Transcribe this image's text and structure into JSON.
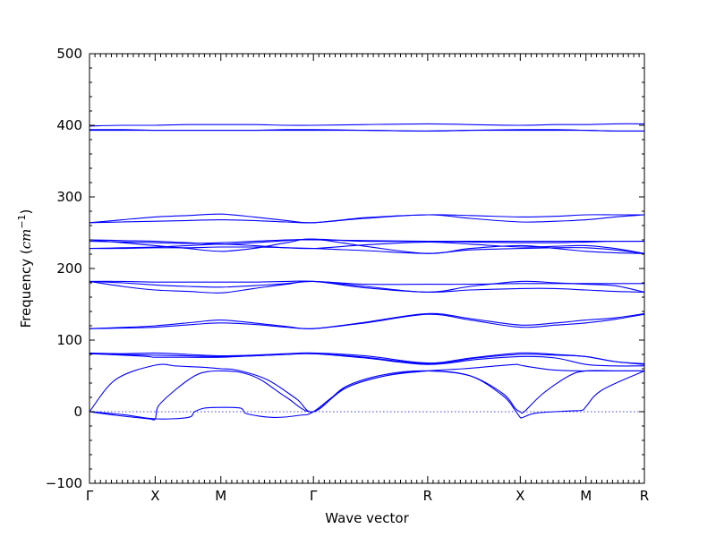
{
  "chart_data": {
    "type": "line",
    "title": "",
    "xlabel": "Wave vector",
    "ylabel": {
      "text": "Frequency (",
      "unit": "cm",
      "exponent": "−1",
      "close": ")"
    },
    "ylim": [
      -100,
      500
    ],
    "yticks": [
      -100,
      0,
      100,
      200,
      300,
      400,
      500
    ],
    "ytick_labels": [
      "−100",
      "0",
      "100",
      "200",
      "300",
      "400",
      "500"
    ],
    "xlim": [
      0,
      8.45
    ],
    "high_symmetry_points": [
      {
        "label": "Γ",
        "x": 0
      },
      {
        "label": "X",
        "x": 1
      },
      {
        "label": "M",
        "x": 2
      },
      {
        "label": "Γ",
        "x": 3.41
      },
      {
        "label": "R",
        "x": 5.15
      },
      {
        "label": "X",
        "x": 6.56
      },
      {
        "label": "M",
        "x": 7.56
      },
      {
        "label": "R",
        "x": 8.45
      }
    ],
    "zero_line": {
      "y": 0,
      "style": "dotted"
    },
    "grid": false,
    "color": "#0000ff",
    "series": [
      {
        "x": [
          0,
          0.4,
          1.0,
          1.3,
          1.5,
          1.75,
          2.0,
          2.25,
          2.7,
          3.15,
          3.41,
          3.9,
          4.5,
          5.15,
          5.7,
          6.2,
          6.5,
          6.56,
          6.75,
          7.1,
          7.56,
          8.0,
          8.45
        ],
        "y": [
          0,
          45,
          65,
          64,
          63,
          62,
          60,
          58,
          45,
          18,
          0,
          33,
          50,
          57,
          60,
          64,
          66,
          65,
          62,
          58,
          57,
          57,
          57
        ]
      },
      {
        "x": [
          0,
          0.4,
          0.9,
          1.0,
          1.05,
          1.3,
          1.6,
          1.8,
          2.0,
          2.3,
          2.6,
          3.0,
          3.41,
          3.9,
          4.5,
          5.15,
          5.8,
          6.3,
          6.48,
          6.56,
          6.62,
          6.9,
          7.3,
          7.56,
          8.0,
          8.45
        ],
        "y": [
          0,
          -5,
          -10,
          -10,
          8,
          30,
          50,
          56,
          57,
          55,
          45,
          20,
          0,
          35,
          52,
          57,
          50,
          25,
          5,
          0,
          0,
          25,
          50,
          57,
          57,
          57
        ]
      },
      {
        "x": [
          0,
          0.5,
          1.0,
          1.5,
          1.6,
          1.75,
          2.0,
          2.3,
          2.4,
          2.8,
          3.2,
          3.41,
          3.9,
          4.5,
          5.15,
          5.8,
          6.3,
          6.48,
          6.56,
          6.6,
          6.8,
          7.3,
          7.5,
          7.56,
          7.8,
          8.45
        ],
        "y": [
          0,
          -4,
          -10,
          -8,
          0,
          5,
          6,
          5,
          -3,
          -8,
          -5,
          0,
          33,
          50,
          57,
          50,
          22,
          2,
          -8,
          -8,
          -2,
          1,
          2,
          7,
          30,
          57
        ]
      },
      {
        "x": [
          0,
          0.5,
          1.0,
          1.5,
          2.0,
          2.5,
          3.0,
          3.41,
          4.2,
          5.15,
          5.9,
          6.56,
          7.1,
          7.56,
          8.0,
          8.45
        ],
        "y": [
          81,
          80,
          79,
          78,
          77,
          78,
          80,
          81,
          76,
          67,
          75,
          80,
          79,
          77,
          70,
          66
        ]
      },
      {
        "x": [
          0,
          0.5,
          0.9,
          1.0,
          1.5,
          2.0,
          2.5,
          3.0,
          3.41,
          4.2,
          5.15,
          5.9,
          6.56,
          7.1,
          7.56,
          8.0,
          8.45
        ],
        "y": [
          81,
          79,
          77,
          76,
          76,
          76,
          78,
          80,
          81,
          75,
          66,
          73,
          77,
          75,
          66,
          64,
          64
        ]
      },
      {
        "x": [
          0,
          0.5,
          1.0,
          1.5,
          2.0,
          2.5,
          3.0,
          3.41,
          4.2,
          5.15,
          5.8,
          6.56,
          7.1,
          7.56,
          8.0,
          8.45
        ],
        "y": [
          82,
          81,
          82,
          80,
          78,
          79,
          81,
          82,
          78,
          68,
          75,
          82,
          80,
          77,
          70,
          67
        ]
      },
      {
        "x": [
          0,
          0.6,
          1.0,
          1.6,
          2.0,
          2.5,
          3.0,
          3.41,
          4.2,
          5.15,
          5.8,
          6.56,
          7.1,
          7.56,
          8.0,
          8.45
        ],
        "y": [
          116,
          118,
          120,
          125,
          128,
          124,
          119,
          116,
          125,
          137,
          130,
          121,
          124,
          128,
          131,
          137
        ]
      },
      {
        "x": [
          0,
          0.6,
          1.0,
          1.6,
          2.0,
          2.5,
          3.0,
          3.41,
          4.2,
          5.15,
          5.8,
          6.56,
          7.1,
          7.56,
          8.0,
          8.45
        ],
        "y": [
          116,
          117,
          118,
          122,
          124,
          122,
          118,
          116,
          124,
          136,
          128,
          118,
          121,
          124,
          129,
          136
        ]
      },
      {
        "x": [
          0,
          0.5,
          1.0,
          1.5,
          2.0,
          2.5,
          3.0,
          3.41,
          4.2,
          5.15,
          5.8,
          6.56,
          7.1,
          7.56,
          8.0,
          8.45
        ],
        "y": [
          182,
          180,
          177,
          175,
          174,
          176,
          179,
          182,
          178,
          178,
          178,
          179,
          179,
          179,
          179,
          179
        ]
      },
      {
        "x": [
          0,
          0.5,
          1.0,
          1.5,
          2.0,
          2.5,
          3.0,
          3.41,
          4.2,
          5.15,
          5.8,
          6.56,
          7.1,
          7.56,
          8.0,
          8.45
        ],
        "y": [
          182,
          175,
          170,
          168,
          166,
          172,
          178,
          182,
          173,
          167,
          170,
          172,
          172,
          170,
          168,
          167
        ]
      },
      {
        "x": [
          0,
          0.5,
          1.0,
          1.5,
          2.0,
          2.5,
          3.0,
          3.41,
          4.2,
          5.15,
          5.8,
          6.56,
          7.1,
          7.56,
          8.0,
          8.45
        ],
        "y": [
          182,
          182,
          181,
          181,
          181,
          181,
          182,
          182,
          175,
          167,
          175,
          182,
          180,
          178,
          176,
          167
        ]
      },
      {
        "x": [
          0,
          0.5,
          1.0,
          1.5,
          2.0,
          2.5,
          3.0,
          3.41,
          4.2,
          5.15,
          5.8,
          6.56,
          7.1,
          7.56,
          8.0,
          8.45
        ],
        "y": [
          240,
          239,
          238,
          236,
          234,
          236,
          239,
          241,
          238,
          238,
          238,
          238,
          238,
          238,
          238,
          238
        ]
      },
      {
        "x": [
          0,
          0.5,
          1.0,
          1.5,
          2.0,
          2.5,
          3.0,
          3.41,
          4.2,
          5.15,
          5.8,
          6.56,
          7.1,
          7.56,
          8.0,
          8.45
        ],
        "y": [
          240,
          236,
          232,
          228,
          224,
          228,
          236,
          241,
          231,
          221,
          228,
          232,
          228,
          224,
          222,
          221
        ]
      },
      {
        "x": [
          0,
          0.5,
          1.0,
          1.5,
          2.0,
          2.5,
          3.0,
          3.41,
          4.2,
          5.15,
          5.8,
          6.56,
          7.1,
          7.56,
          8.0,
          8.45
        ],
        "y": [
          228,
          229,
          230,
          232,
          234,
          232,
          229,
          228,
          233,
          237,
          234,
          230,
          231,
          232,
          228,
          221
        ]
      },
      {
        "x": [
          0,
          0.5,
          1.0,
          1.5,
          2.0,
          2.5,
          3.0,
          3.41,
          4.2,
          5.15,
          5.8,
          6.56,
          7.1,
          7.56,
          8.0,
          8.45
        ],
        "y": [
          228,
          228,
          229,
          229,
          230,
          230,
          229,
          228,
          225,
          221,
          226,
          228,
          229,
          229,
          226,
          221
        ]
      },
      {
        "x": [
          0,
          0.5,
          1.0,
          1.5,
          2.0,
          2.5,
          3.0,
          3.41,
          4.2,
          5.15,
          5.8,
          6.56,
          7.1,
          7.56,
          8.0,
          8.45
        ],
        "y": [
          238,
          237,
          236,
          235,
          236,
          238,
          240,
          240,
          239,
          238,
          237,
          236,
          236,
          237,
          238,
          238
        ]
      },
      {
        "x": [
          0,
          0.5,
          1.0,
          1.5,
          2.0,
          2.5,
          3.0,
          3.41,
          4.2,
          5.15,
          5.8,
          6.56,
          7.1,
          7.56,
          8.0,
          8.45
        ],
        "y": [
          264,
          268,
          272,
          274,
          276,
          272,
          267,
          264,
          271,
          275,
          274,
          272,
          273,
          275,
          275,
          275
        ]
      },
      {
        "x": [
          0,
          0.5,
          1.0,
          1.5,
          2.0,
          2.5,
          3.0,
          3.41,
          4.2,
          5.15,
          5.8,
          6.56,
          7.1,
          7.56,
          8.0,
          8.45
        ],
        "y": [
          264,
          265,
          266,
          267,
          268,
          267,
          265,
          264,
          270,
          275,
          270,
          265,
          266,
          268,
          272,
          275
        ]
      },
      {
        "x": [
          0,
          0.5,
          1.0,
          1.5,
          2.0,
          2.5,
          3.0,
          3.41,
          4.2,
          5.15,
          5.8,
          6.56,
          7.1,
          7.56,
          8.0,
          8.45
        ],
        "y": [
          399,
          400,
          400,
          401,
          401,
          401,
          400,
          400,
          401,
          402,
          401,
          400,
          401,
          401,
          402,
          402
        ]
      },
      {
        "x": [
          0,
          0.5,
          1.0,
          1.5,
          2.0,
          2.5,
          3.0,
          3.41,
          4.2,
          5.15,
          5.8,
          6.56,
          7.1,
          7.56,
          8.0,
          8.45
        ],
        "y": [
          394,
          394,
          393,
          393,
          393,
          393,
          394,
          394,
          393,
          392,
          393,
          394,
          394,
          393,
          392,
          392
        ]
      },
      {
        "x": [
          0,
          0.5,
          1.0,
          1.5,
          2.0,
          2.5,
          3.0,
          3.41,
          4.2,
          5.15,
          5.8,
          6.56,
          7.1,
          7.56,
          8.0,
          8.45
        ],
        "y": [
          393,
          393,
          393,
          393,
          393,
          393,
          393,
          393,
          393,
          392,
          393,
          393,
          393,
          393,
          392,
          392
        ]
      }
    ]
  }
}
